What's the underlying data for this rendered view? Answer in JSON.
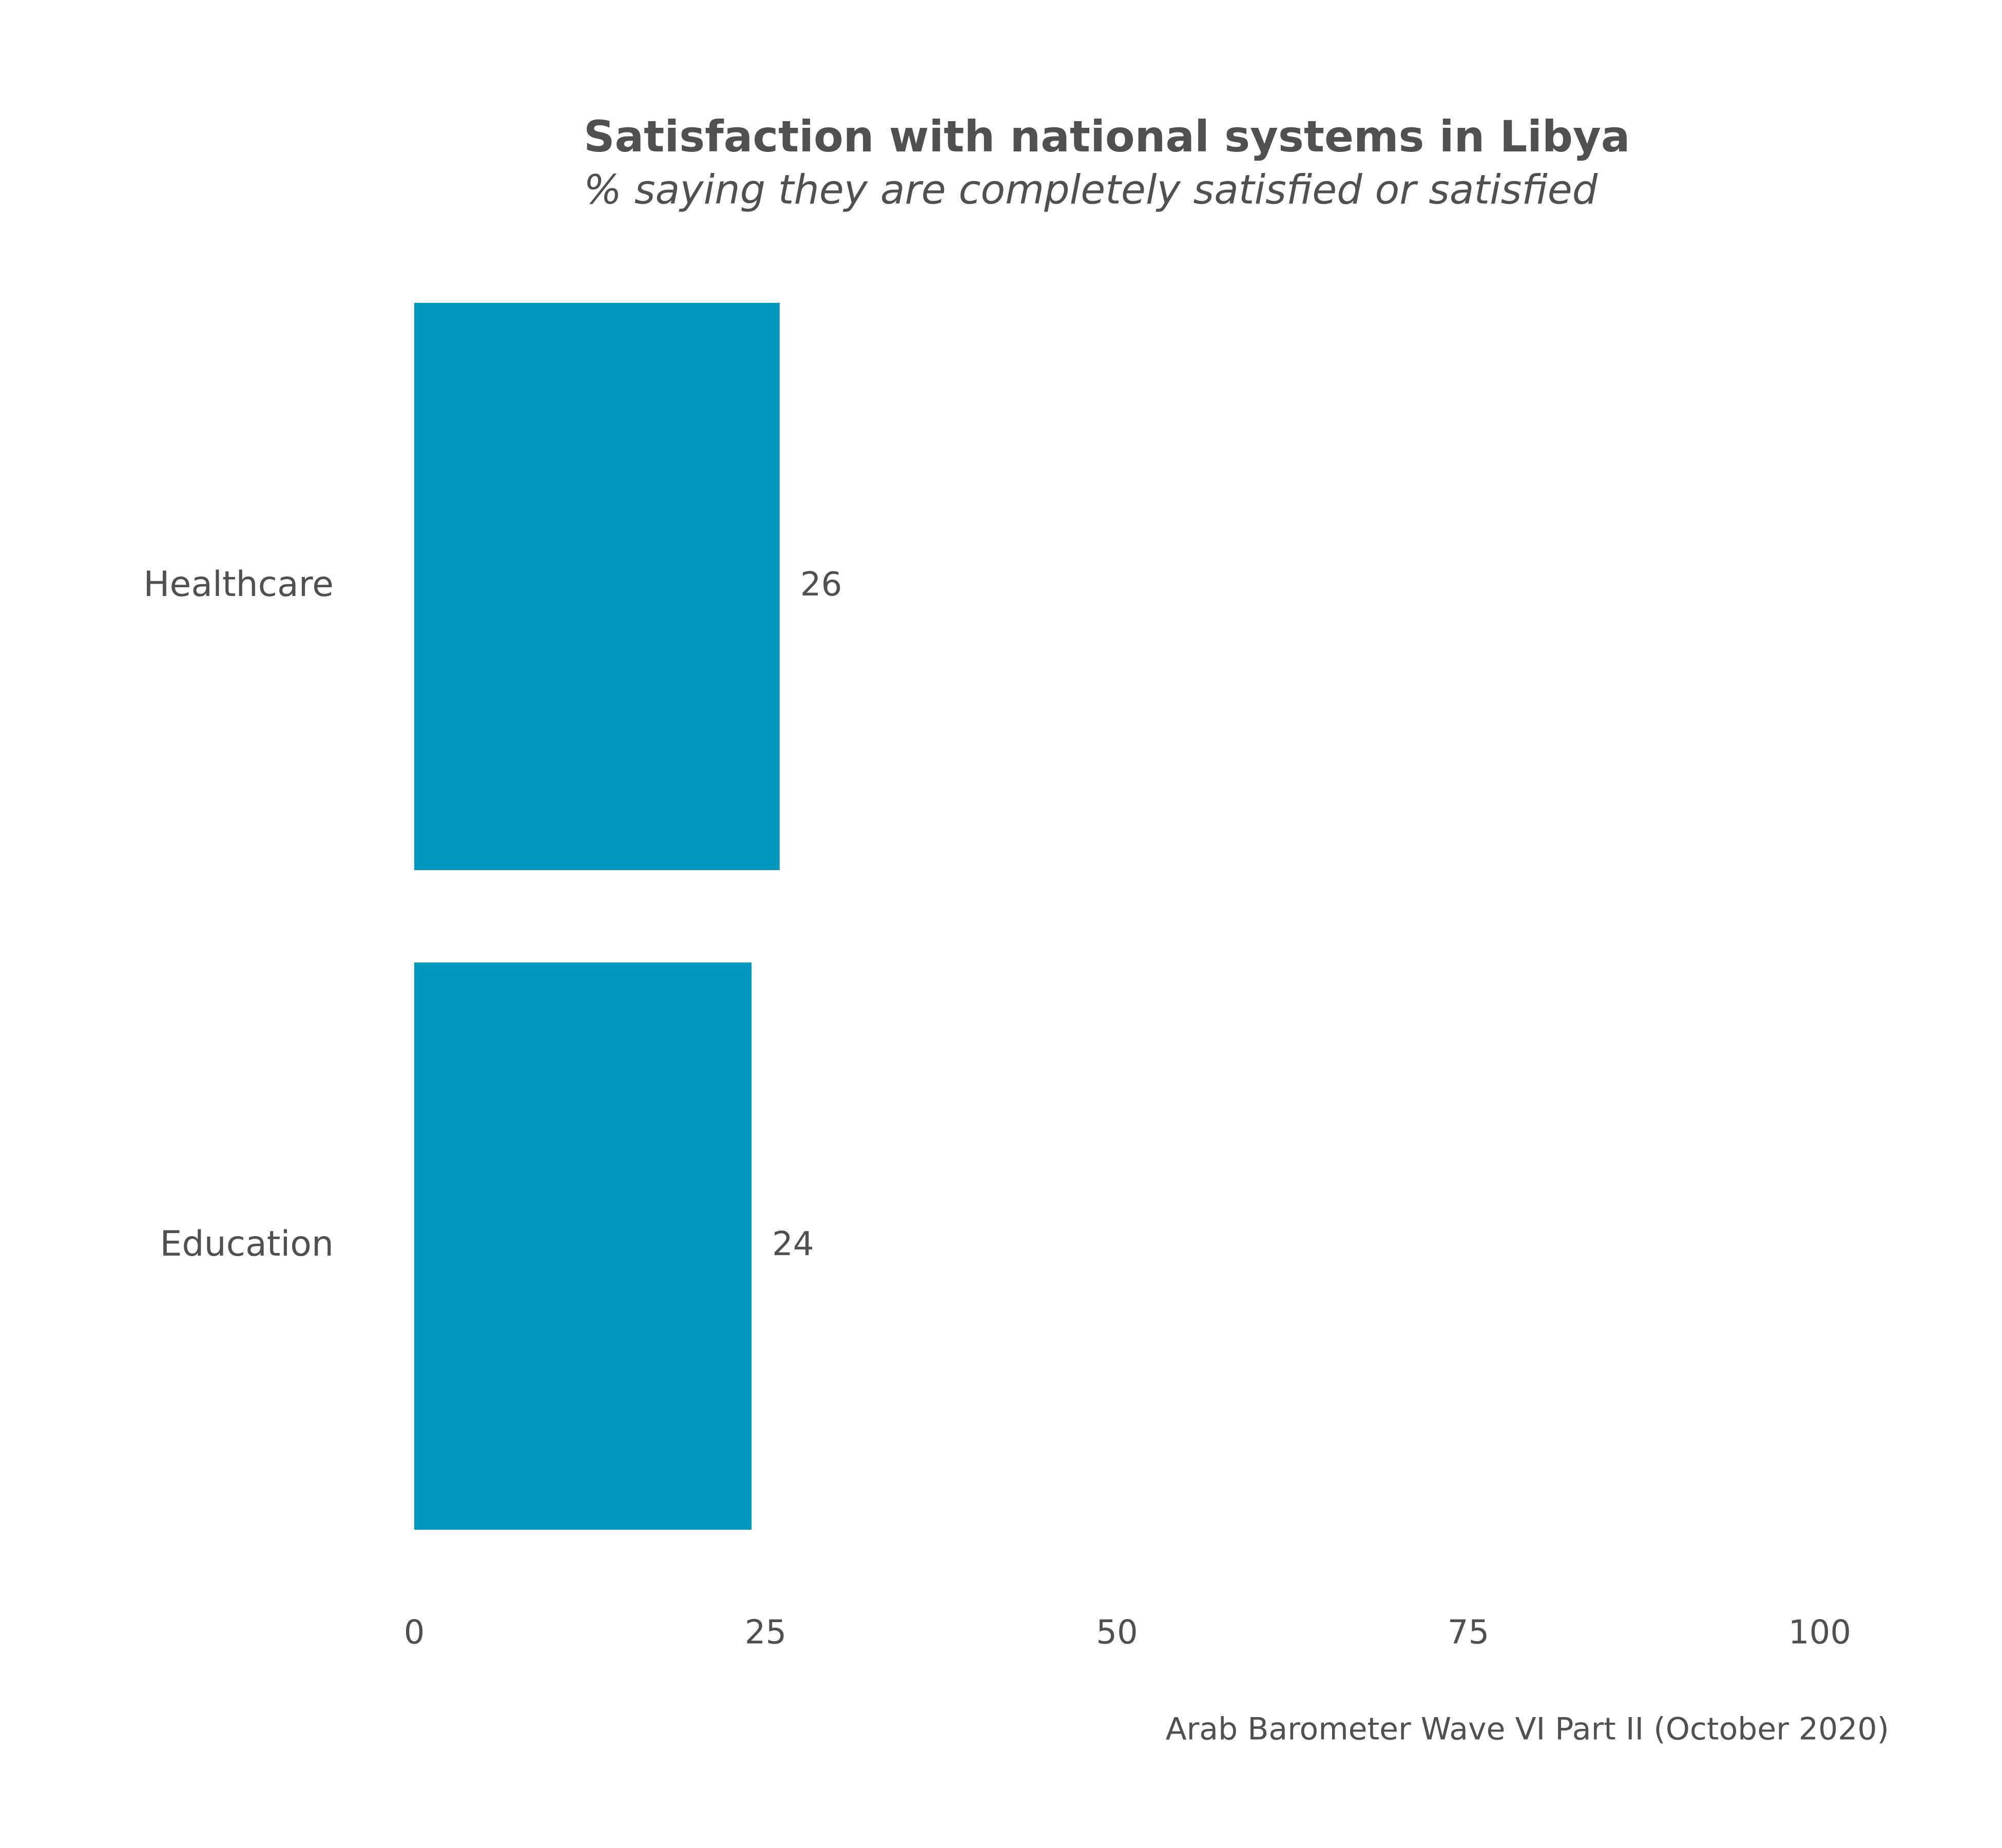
{
  "chart_data": {
    "type": "barh",
    "title": "Satisfaction with national systems in Libya",
    "subtitle": "% saying they are completely satisfied or satisfied",
    "caption": "Arab Barometer Wave VI Part II (October 2020)",
    "categories": [
      "Healthcare",
      "Education"
    ],
    "values": [
      26,
      24
    ],
    "color": "#0098bf",
    "xlim": [
      0,
      100
    ],
    "xticks": [
      0,
      25,
      50,
      75,
      100
    ],
    "grid": false
  }
}
